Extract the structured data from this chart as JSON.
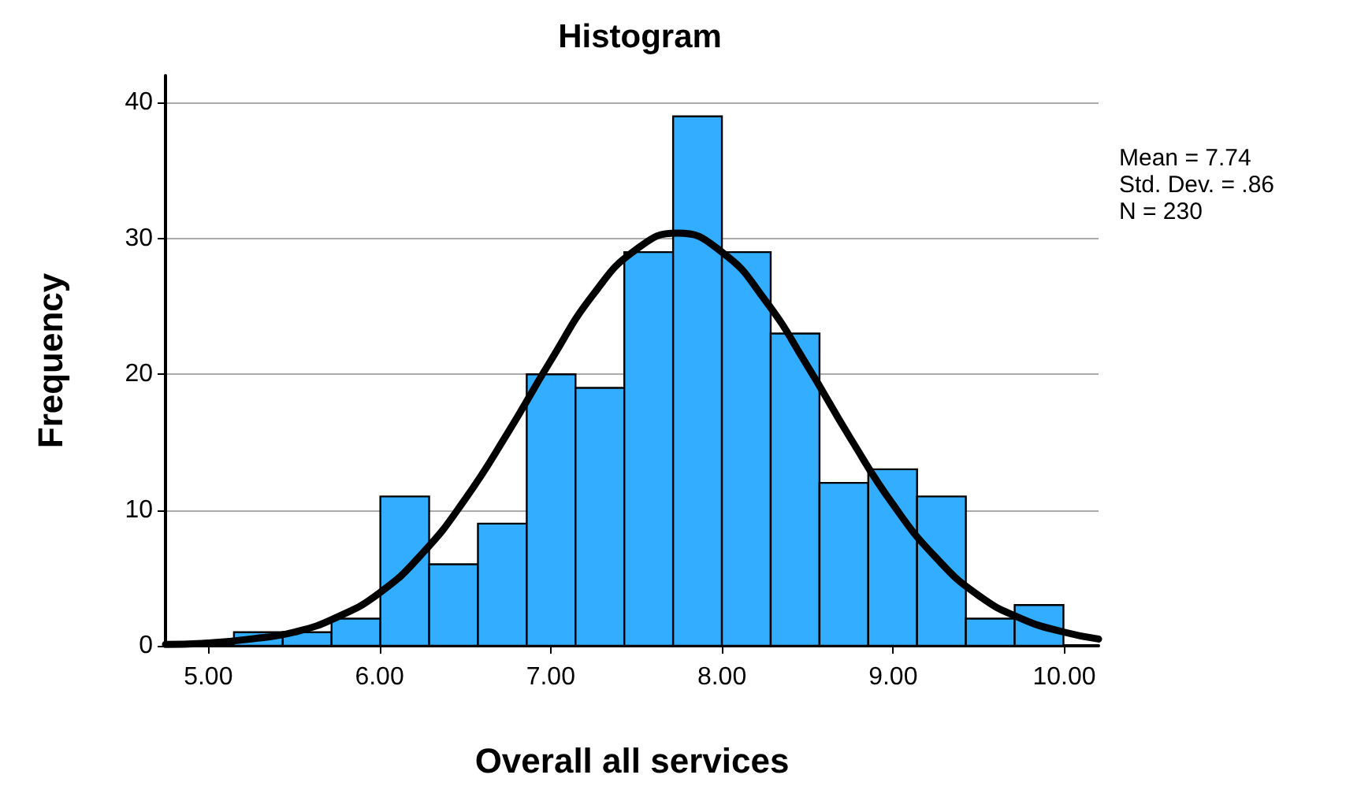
{
  "chart_data": {
    "type": "histogram",
    "title": "Histogram",
    "xlabel": "Overall all services",
    "ylabel": "Frequency",
    "annotations": [
      "Mean = 7.74",
      "Std. Dev. = .86",
      "N = 230"
    ],
    "bins": [
      5.15,
      5.435,
      5.72,
      6.005,
      6.29,
      6.575,
      6.86,
      7.145,
      7.43,
      7.715,
      8.0,
      8.285,
      8.57,
      8.855,
      9.14,
      9.425,
      9.71,
      9.995
    ],
    "values": [
      1,
      1,
      2,
      11,
      6,
      9,
      20,
      19,
      29,
      39,
      29,
      23,
      12,
      13,
      11,
      2,
      3
    ],
    "color": "#33adff",
    "series": [
      {
        "type": "line",
        "color": "#000000",
        "x": [
          4.75,
          5.0,
          5.25,
          5.5,
          5.75,
          6.0,
          6.25,
          6.5,
          6.75,
          7.0,
          7.25,
          7.5,
          7.74,
          8.0,
          8.25,
          8.5,
          8.75,
          9.0,
          9.25,
          9.5,
          9.75,
          10.0,
          10.2
        ],
        "values": [
          0.1,
          0.2,
          0.5,
          1.0,
          2.1,
          3.9,
          6.8,
          10.8,
          15.7,
          21.0,
          25.9,
          29.2,
          30.4,
          29.0,
          25.5,
          20.6,
          15.3,
          10.4,
          6.5,
          3.7,
          2.0,
          1.0,
          0.5
        ]
      }
    ],
    "xlim": [
      4.75,
      10.2
    ],
    "xticks": [
      {
        "value": 5,
        "label": "5.00"
      },
      {
        "value": 6,
        "label": "6.00"
      },
      {
        "value": 7,
        "label": "7.00"
      },
      {
        "value": 8,
        "label": "8.00"
      },
      {
        "value": 9,
        "label": "9.00"
      },
      {
        "value": 10,
        "label": "10.00"
      }
    ],
    "ylim": [
      0,
      42
    ],
    "yticks": [
      0,
      10,
      20,
      30,
      40
    ],
    "grid": "y",
    "legend": false
  }
}
